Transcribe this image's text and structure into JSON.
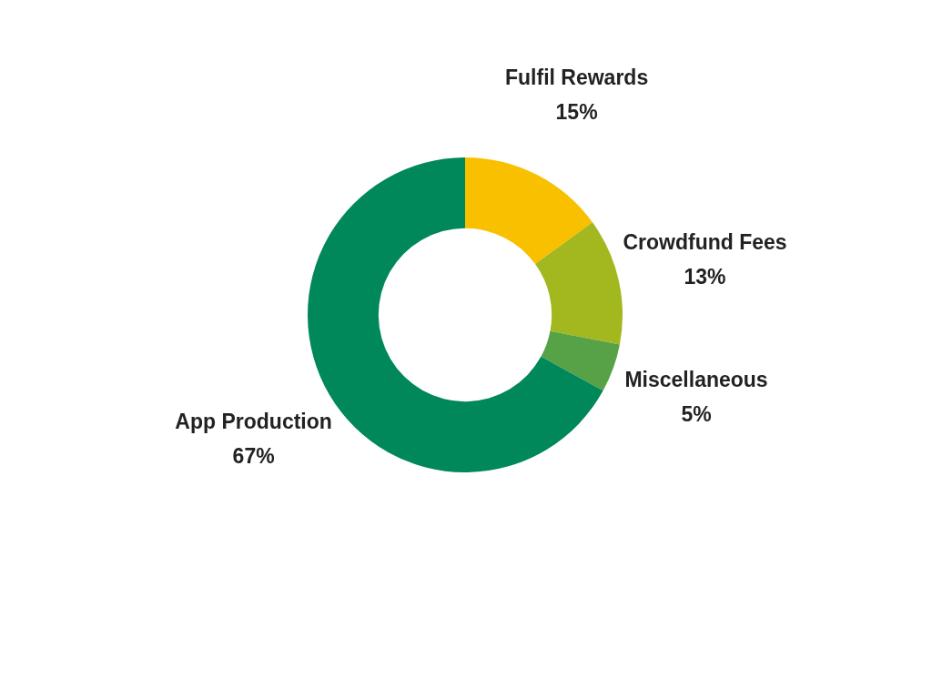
{
  "chart_data": {
    "type": "donut",
    "categories": [
      "Fulfil Rewards",
      "Crowdfund Fees",
      "Miscellaneous",
      "App Production"
    ],
    "values": [
      15,
      13,
      5,
      67
    ],
    "colors": [
      "#f9c000",
      "#a3b71f",
      "#57a146",
      "#00875a"
    ],
    "value_labels": [
      "15%",
      "13%",
      "5%",
      "67%"
    ],
    "legend": false
  }
}
